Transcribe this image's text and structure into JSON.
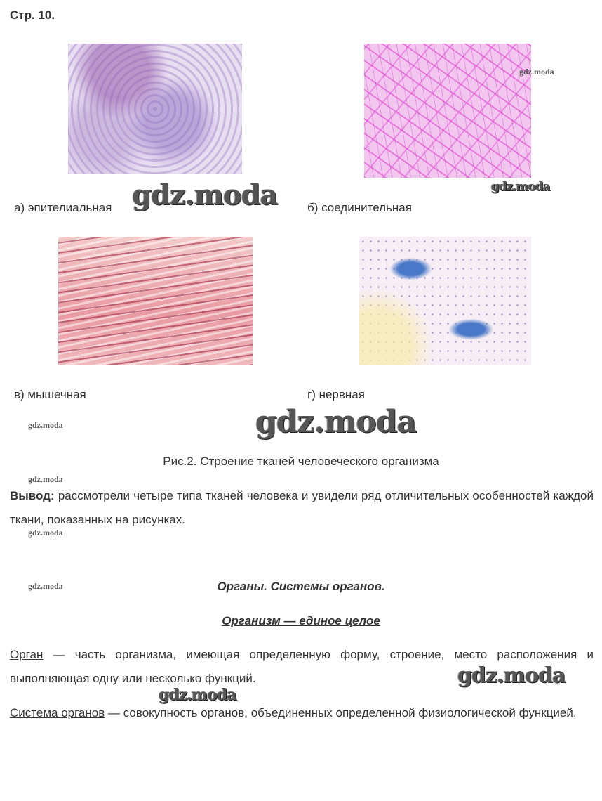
{
  "header": {
    "title": "Стр. 10."
  },
  "figure": {
    "items": [
      {
        "label": "а) эпителиальная"
      },
      {
        "label": "б) соединительная"
      },
      {
        "label": "в) мышечная"
      },
      {
        "label": "г) нервная"
      }
    ],
    "caption": "Рис.2. Строение тканей человеческого организма"
  },
  "conclusion": {
    "label": "Вывод:",
    "text": " рассмотрели четыре типа тканей человека и увидели ряд отличительных особенностей каждой ткани, показанных на рисунках."
  },
  "section": {
    "heading": "Органы. Системы органов.",
    "subheading": "Организм — единое целое",
    "definitions": [
      {
        "term": "Орган",
        "text": " — часть организма, имеющая определенную форму, строение, место расположения и выполняющая одну или несколько функций."
      },
      {
        "term": "Система органов",
        "text": " — совокупность органов, объединенных определенной физиологической функцией."
      }
    ]
  },
  "watermark": "gdz.moda"
}
